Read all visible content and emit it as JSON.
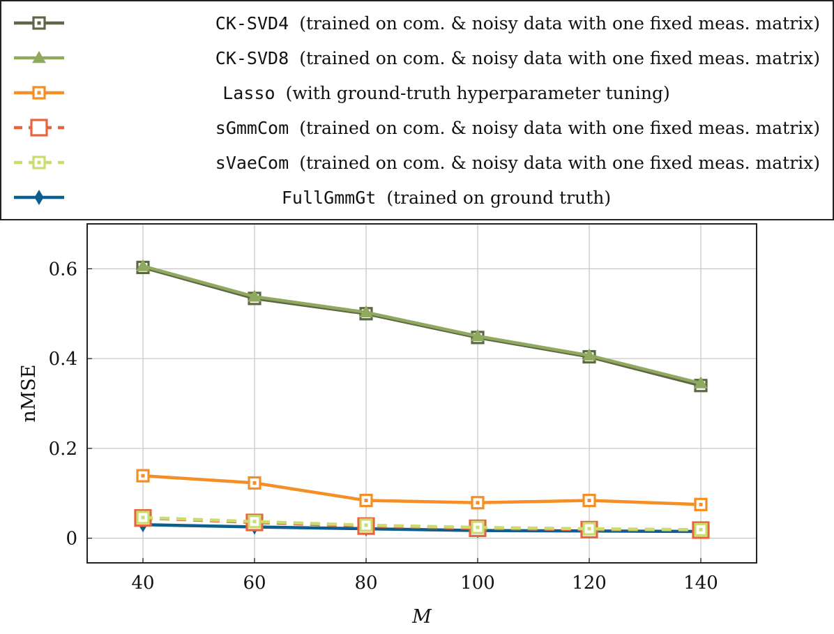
{
  "chart_data": {
    "type": "line",
    "xlabel": "M",
    "ylabel": "nMSE",
    "x": [
      40,
      60,
      80,
      100,
      120,
      140
    ],
    "xlim": [
      30,
      150
    ],
    "ylim": [
      -0.055,
      0.7
    ],
    "xticks": [
      "40",
      "60",
      "80",
      "100",
      "120",
      "140"
    ],
    "yticks": [
      {
        "value": 0,
        "label": "0"
      },
      {
        "value": 0.2,
        "label": "0.2"
      },
      {
        "value": 0.4,
        "label": "0.4"
      },
      {
        "value": 0.6,
        "label": "0.6"
      }
    ],
    "grid": true,
    "legend_position": "top (above plot)",
    "series": [
      {
        "name": "CK-SVD4",
        "description": "(trained on com. & noisy data with one fixed meas. matrix)",
        "values": [
          0.603,
          0.534,
          0.5,
          0.447,
          0.404,
          0.34
        ],
        "color": "#5d6748",
        "marker": "square",
        "dashed": false
      },
      {
        "name": "CK-SVD8",
        "description": "(trained on com. & noisy data with one fixed meas. matrix)",
        "values": [
          0.606,
          0.538,
          0.503,
          0.45,
          0.407,
          0.345
        ],
        "color": "#8faa5e",
        "marker": "triangle",
        "dashed": false
      },
      {
        "name": "Lasso",
        "description": "(with ground-truth hyperparameter tuning)",
        "values": [
          0.139,
          0.123,
          0.084,
          0.079,
          0.084,
          0.075
        ],
        "color": "#f58e25",
        "marker": "square",
        "dashed": false
      },
      {
        "name": "sGmmCom",
        "description": "(trained on com. & noisy data with one fixed meas. matrix)",
        "values": [
          0.045,
          0.035,
          0.027,
          0.022,
          0.019,
          0.018
        ],
        "color": "#e8643c",
        "marker": "square-large",
        "dashed": true
      },
      {
        "name": "sVaeCom",
        "description": "(trained on com. & noisy data with one fixed meas. matrix)",
        "values": [
          0.046,
          0.037,
          0.029,
          0.024,
          0.021,
          0.019
        ],
        "color": "#c9dc6f",
        "marker": "square",
        "dashed": true
      },
      {
        "name": "FullGmmGt",
        "description": "(trained on ground truth)",
        "values": [
          0.03,
          0.025,
          0.021,
          0.017,
          0.016,
          0.015
        ],
        "color": "#0b5e8e",
        "marker": "diamond",
        "dashed": false
      }
    ]
  }
}
